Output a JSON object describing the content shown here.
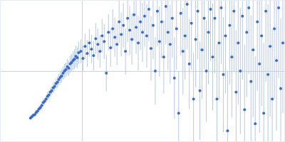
{
  "chart_data": {
    "type": "scatter",
    "marker": "circle",
    "color": "#3a6bc9",
    "x": [
      42,
      44,
      46,
      48,
      50,
      52,
      54,
      56,
      58,
      60,
      62,
      64,
      66,
      68,
      70,
      72,
      74,
      76,
      78,
      80,
      82,
      84,
      86,
      88,
      90,
      92,
      94,
      96,
      98,
      100,
      102,
      104,
      106,
      108,
      110,
      113,
      116,
      119,
      122,
      125,
      128,
      131,
      134,
      137,
      140,
      143,
      146,
      149,
      152,
      155,
      158,
      161,
      164,
      167,
      170,
      173,
      176,
      179,
      182,
      185,
      188,
      191,
      194,
      197,
      200,
      203,
      206,
      209,
      212,
      215,
      218,
      221,
      224,
      227,
      230,
      233,
      236,
      239,
      242,
      245,
      248,
      251,
      254,
      257,
      260,
      263,
      266,
      269,
      272,
      275,
      278,
      281,
      284,
      287,
      290,
      293,
      296,
      299,
      302,
      305,
      308,
      311,
      314,
      317,
      320,
      323,
      326,
      329,
      332,
      335,
      338,
      341,
      344,
      347,
      350,
      353,
      356,
      359,
      362,
      365,
      368,
      371,
      374,
      377,
      380,
      383,
      386,
      389,
      392,
      395,
      398
    ],
    "values": [
      33,
      35,
      37,
      38,
      41,
      43,
      46,
      48,
      51,
      55,
      57,
      60,
      64,
      66,
      70,
      72,
      76,
      78,
      82,
      84,
      88,
      91,
      93,
      97,
      100,
      102,
      106,
      104,
      110,
      112,
      115,
      117,
      121,
      119,
      126,
      128,
      118,
      135,
      125,
      140,
      131,
      122,
      146,
      138,
      128,
      150,
      142,
      97,
      155,
      133,
      160,
      148,
      138,
      170,
      152,
      165,
      128,
      175,
      158,
      145,
      180,
      162,
      140,
      170,
      155,
      178,
      150,
      188,
      132,
      165,
      100,
      185,
      142,
      170,
      120,
      192,
      155,
      138,
      175,
      90,
      160,
      40,
      182,
      128,
      150,
      195,
      110,
      168,
      60,
      145,
      185,
      72,
      130,
      175,
      100,
      155,
      188,
      120,
      175,
      60,
      140,
      190,
      95,
      150,
      15,
      165,
      120,
      185,
      70,
      140,
      100,
      178,
      45,
      155,
      190,
      85,
      130,
      25,
      170,
      110,
      150,
      40,
      185,
      95,
      135,
      60,
      160,
      115,
      190,
      75,
      140
    ],
    "error": [
      3,
      3,
      3,
      3,
      4,
      4,
      4,
      4,
      5,
      5,
      5,
      5,
      6,
      6,
      6,
      6,
      7,
      7,
      7,
      8,
      8,
      8,
      9,
      9,
      10,
      10,
      11,
      11,
      12,
      12,
      13,
      14,
      15,
      15,
      16,
      17,
      18,
      18,
      19,
      20,
      20,
      21,
      22,
      22,
      23,
      24,
      25,
      26,
      26,
      27,
      28,
      28,
      30,
      30,
      31,
      32,
      33,
      34,
      35,
      36,
      37,
      38,
      39,
      40,
      42,
      44,
      45,
      46,
      46,
      48,
      48,
      50,
      50,
      52,
      52,
      54,
      54,
      56,
      56,
      58,
      58,
      60,
      60,
      62,
      62,
      64,
      64,
      66,
      66,
      68,
      68,
      70,
      70,
      72,
      72,
      74,
      74,
      76,
      78,
      78,
      80,
      80,
      82,
      82,
      84,
      84,
      86,
      86,
      88,
      88,
      90,
      90,
      92,
      92,
      94,
      94,
      96,
      96,
      98,
      98,
      100,
      100,
      100,
      100,
      100,
      100,
      100,
      100,
      100,
      100,
      100
    ],
    "xlim": [
      0,
      400
    ],
    "ylim": [
      0,
      200
    ],
    "xticks": [
      115
    ],
    "yticks": [
      100
    ],
    "grid": true,
    "tick_labels": false
  }
}
